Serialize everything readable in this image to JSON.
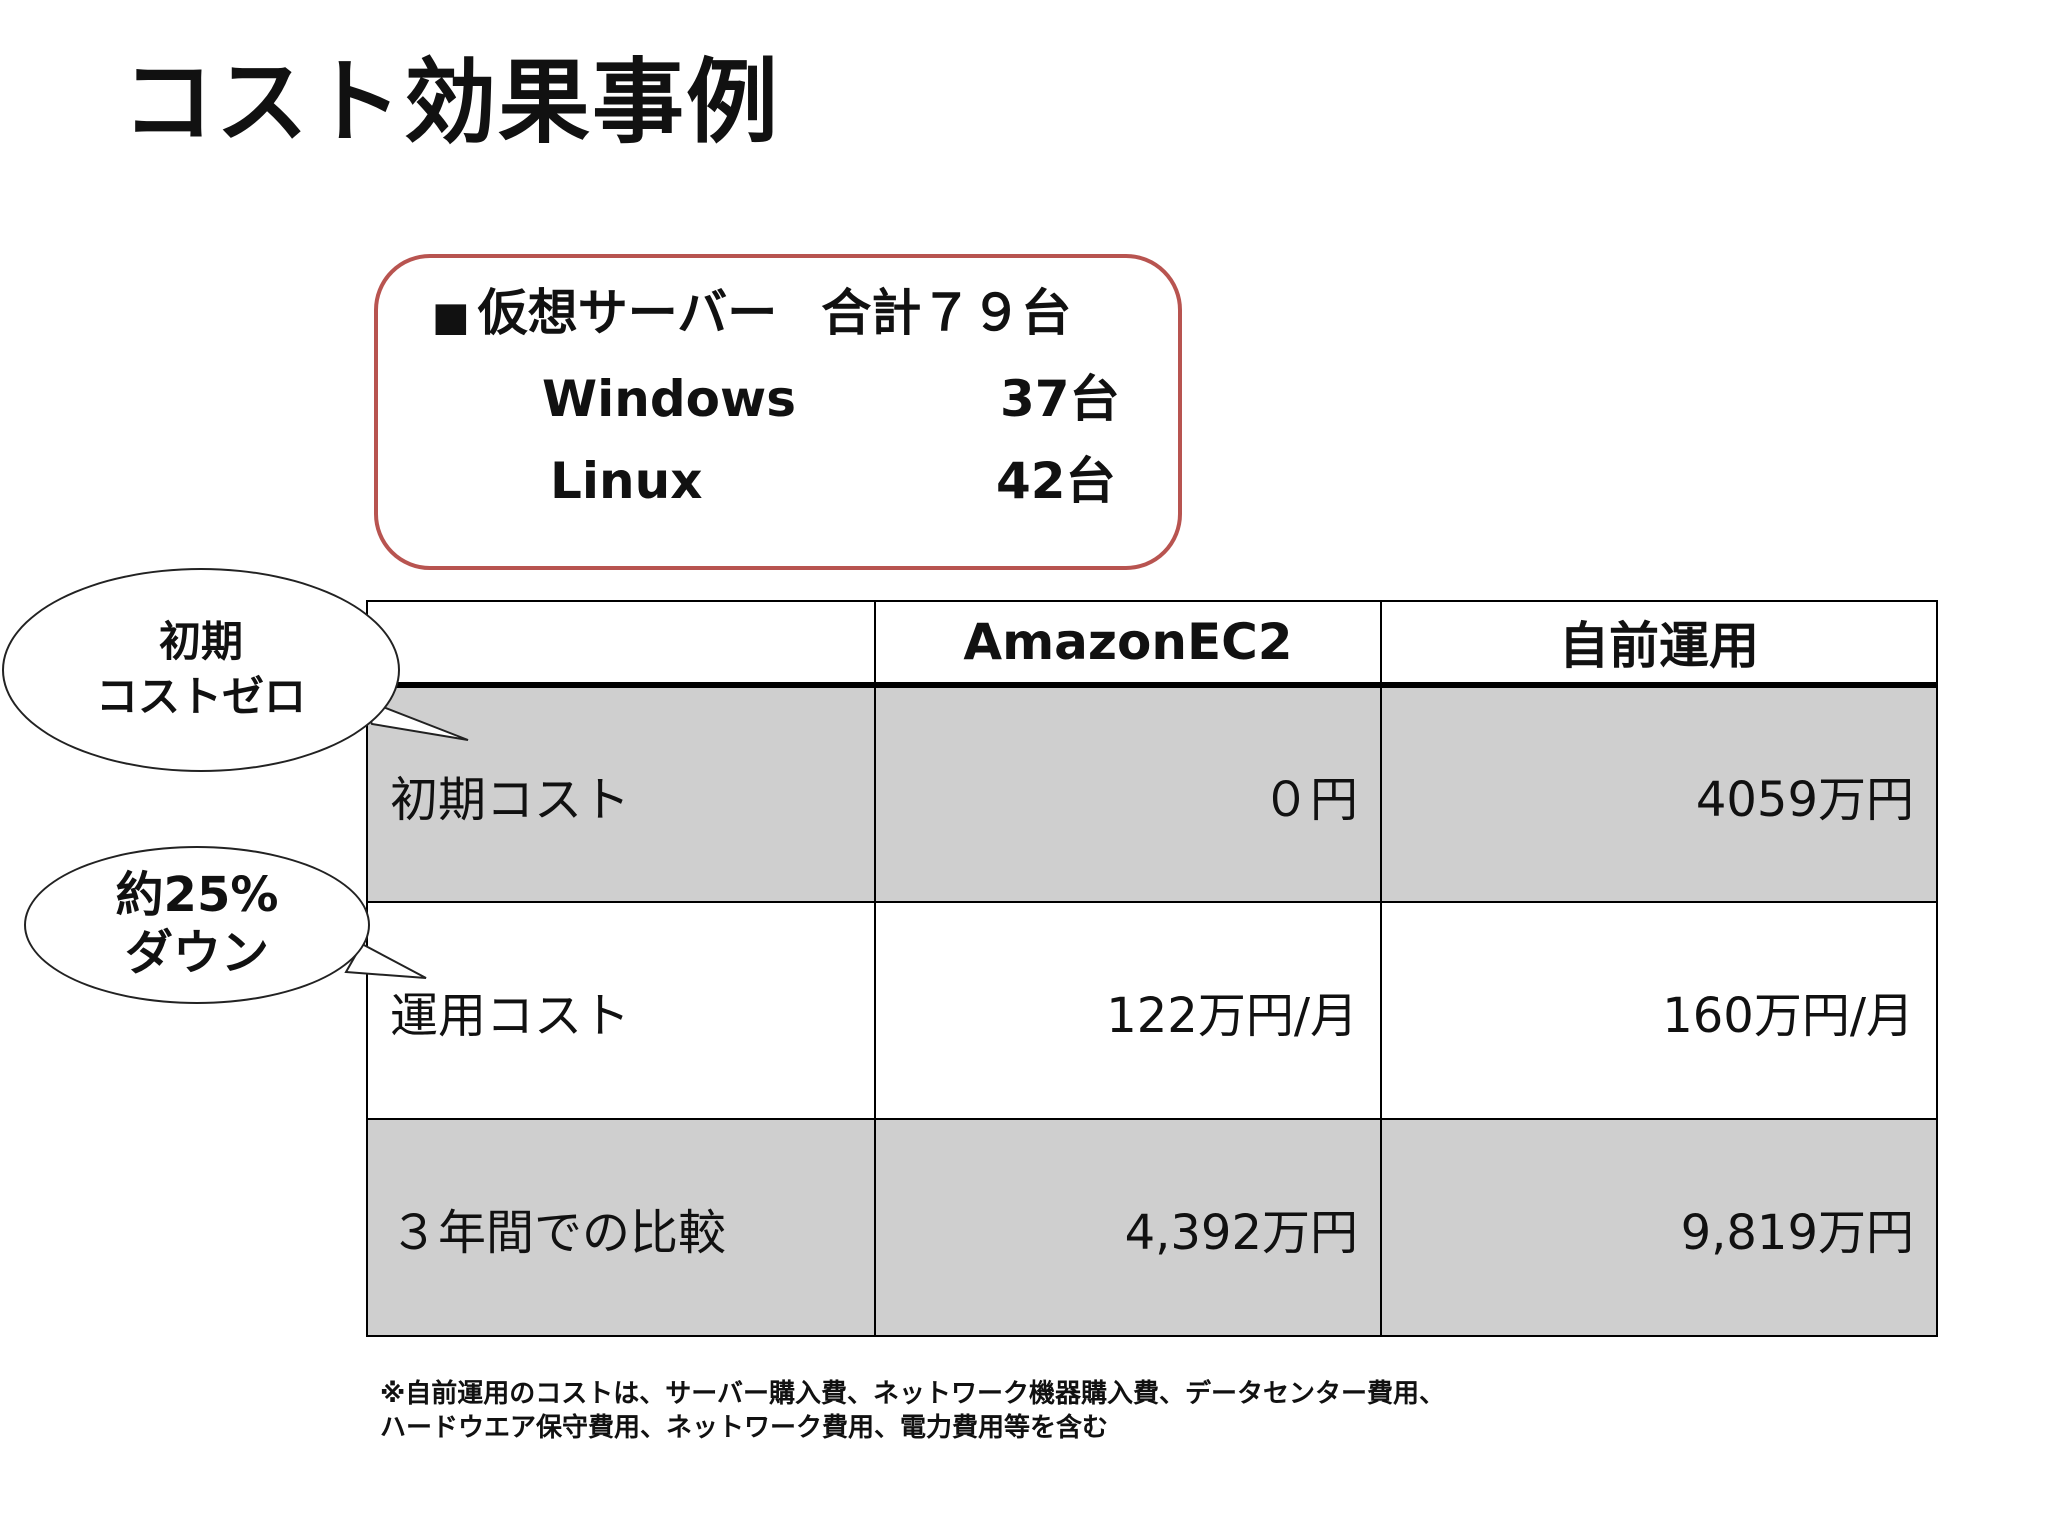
{
  "title": "コスト効果事例",
  "server_box": {
    "bullet": "■",
    "heading": "仮想サーバー",
    "total": "合計７９台",
    "rows": [
      {
        "os": "Windows",
        "count": "37台"
      },
      {
        "os": "Linux",
        "count": "42台"
      }
    ],
    "border_color": "#b85450"
  },
  "table": {
    "headers": [
      "",
      "AmazonEC2",
      "自前運用"
    ],
    "rows": [
      {
        "label": "初期コスト",
        "ec2": "０円",
        "onprem": "4059万円"
      },
      {
        "label": "運用コスト",
        "ec2": "122万円/月",
        "onprem": "160万円/月"
      },
      {
        "label": "３年間での比較",
        "ec2": "4,392万円",
        "onprem": "9,819万円"
      }
    ],
    "shade_color": "#cfcfcf"
  },
  "callouts": [
    {
      "line1": "初期",
      "line2": "コストゼロ"
    },
    {
      "line1": "約25%",
      "line2": "ダウン"
    }
  ],
  "footnote": {
    "line1": "※自前運用のコストは、サーバー購入費、ネットワーク機器購入費、データセンター費用、",
    "line2": "ハードウエア保守費用、ネットワーク費用、電力費用等を含む"
  }
}
